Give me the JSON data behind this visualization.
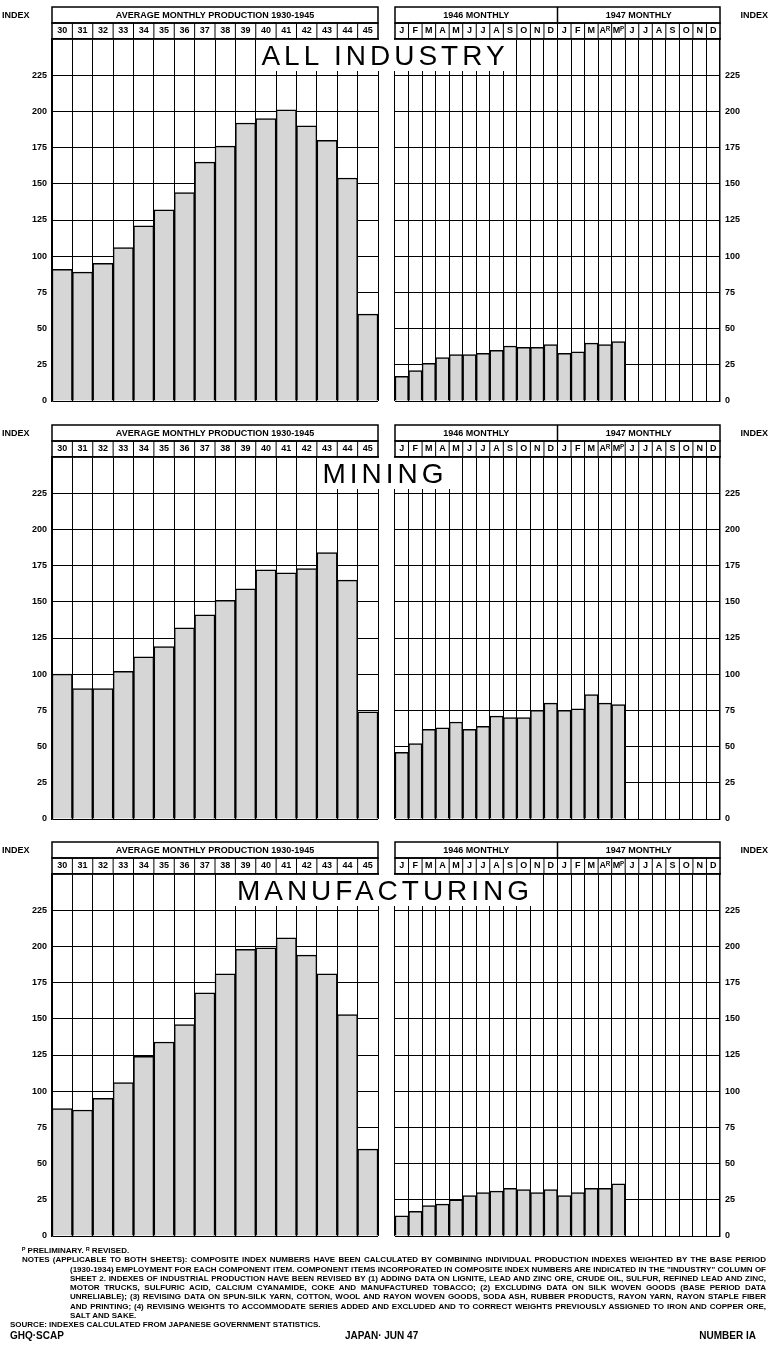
{
  "chart_data": [
    {
      "type": "bar",
      "title": "ALL INDUSTRY",
      "subtitle": "AVERAGE MONTHLY PRODUCTION 1930-1945",
      "ylabel": "INDEX",
      "categories": [
        "30",
        "31",
        "32",
        "33",
        "34",
        "35",
        "36",
        "37",
        "38",
        "39",
        "40",
        "41",
        "42",
        "43",
        "44",
        "45"
      ],
      "series": [
        {
          "color": "#d6d6d6",
          "values": [
            91,
            89,
            95,
            106,
            121,
            132,
            144,
            165,
            176,
            192,
            195,
            201,
            190,
            180,
            154,
            60
          ]
        }
      ],
      "ylim": [
        0,
        250
      ],
      "yticks": [
        0,
        25,
        50,
        75,
        100,
        125,
        150,
        175,
        200,
        225
      ],
      "grid": true
    },
    {
      "type": "bar",
      "annotations": [
        "1946 MONTHLY",
        "1947 MONTHLY"
      ],
      "y2label": "INDEX",
      "categories": [
        "J",
        "F",
        "M",
        "A",
        "M",
        "J",
        "J",
        "A",
        "S",
        "O",
        "N",
        "D",
        "J",
        "F",
        "M",
        "Aᴿ",
        "Mᴾ",
        "J",
        "J",
        "A",
        "S",
        "O",
        "N",
        "D"
      ],
      "series": [
        {
          "color": "#d6d6d6",
          "axis": "y2",
          "values": [
            17,
            21,
            26,
            30,
            32,
            32,
            33,
            35,
            38,
            37,
            37,
            39,
            33,
            34,
            40,
            39,
            41,
            null,
            null,
            null,
            null,
            null,
            null,
            null
          ]
        }
      ],
      "y2lim": [
        0,
        250
      ],
      "y2ticks": [
        0,
        25,
        50,
        75,
        100,
        125,
        150,
        175,
        200,
        225
      ],
      "grid": true
    },
    {
      "type": "bar",
      "title": "MINING",
      "subtitle": "AVERAGE MONTHLY PRODUCTION 1930-1945",
      "ylabel": "INDEX",
      "categories": [
        "30",
        "31",
        "32",
        "33",
        "34",
        "35",
        "36",
        "37",
        "38",
        "39",
        "40",
        "41",
        "42",
        "43",
        "44",
        "45"
      ],
      "series": [
        {
          "color": "#d6d6d6",
          "values": [
            100,
            90,
            90,
            102,
            112,
            119,
            132,
            141,
            151,
            159,
            172,
            170,
            173,
            184,
            165,
            74
          ]
        }
      ],
      "ylim": [
        0,
        250
      ],
      "yticks": [
        0,
        25,
        50,
        75,
        100,
        125,
        150,
        175,
        200,
        225
      ],
      "grid": true
    },
    {
      "type": "bar",
      "annotations": [
        "1946 MONTHLY",
        "1947 MONTHLY"
      ],
      "y2label": "INDEX",
      "categories": [
        "J",
        "F",
        "M",
        "A",
        "M",
        "J",
        "J",
        "A",
        "S",
        "O",
        "N",
        "D",
        "J",
        "F",
        "M",
        "Aᴿ",
        "Mᴾ",
        "J",
        "J",
        "A",
        "S",
        "O",
        "N",
        "D"
      ],
      "series": [
        {
          "color": "#d6d6d6",
          "axis": "y2",
          "values": [
            46,
            52,
            62,
            63,
            67,
            62,
            64,
            71,
            70,
            70,
            75,
            80,
            75,
            76,
            86,
            80,
            79,
            null,
            null,
            null,
            null,
            null,
            null,
            null
          ]
        }
      ],
      "y2lim": [
        0,
        250
      ],
      "y2ticks": [
        0,
        25,
        50,
        75,
        100,
        125,
        150,
        175,
        200,
        225
      ],
      "grid": true
    },
    {
      "type": "bar",
      "title": "MANUFACTURING",
      "subtitle": "AVERAGE MONTHLY PRODUCTION 1930-1945",
      "ylabel": "INDEX",
      "categories": [
        "30",
        "31",
        "32",
        "33",
        "34",
        "35",
        "36",
        "37",
        "38",
        "39",
        "40",
        "41",
        "42",
        "43",
        "44",
        "45"
      ],
      "series": [
        {
          "color": "#d6d6d6",
          "values": [
            88,
            87,
            95,
            106,
            124,
            134,
            146,
            168,
            181,
            198,
            199,
            206,
            194,
            181,
            153,
            60
          ]
        }
      ],
      "ylim": [
        0,
        250
      ],
      "yticks": [
        0,
        25,
        50,
        75,
        100,
        125,
        150,
        175,
        200,
        225
      ],
      "grid": true
    },
    {
      "type": "bar",
      "annotations": [
        "1946 MONTHLY",
        "1947 MONTHLY",
        "ᴾ PRELIMINARY.    ᴿ REVISED.",
        "NOTES (APPLICABLE TO BOTH SHEETS): COMPOSITE INDEX NUMBERS HAVE BEEN CALCULATED BY COMBINING INDIVIDUAL PRODUCTION INDEXES WEIGHTED BY THE BASE PERIOD (1930-1934) EMPLOYMENT FOR EACH COMPONENT ITEM. COMPONENT ITEMS INCORPORATED IN COMPOSITE INDEX NUMBERS ARE INDICATED IN THE \"INDUSTRY\" COLUMN OF SHEET 2. INDEXES OF INDUSTRIAL PRODUCTION HAVE BEEN REVISED BY (1) ADDING DATA ON LIGNITE, LEAD AND ZINC ORE, CRUDE OIL, SULFUR, REFINED LEAD AND ZINC, MOTOR TRUCKS, SULFURIC ACID, CALCIUM CYANAMIDE, COKE AND MANUFACTURED TOBACCO; (2) EXCLUDING DATA ON SILK WOVEN GOODS (BASE PERIOD DATA UNRELIABLE); (3) REVISING DATA ON SPUN-SILK YARN, COTTON, WOOL AND RAYON WOVEN GOODS, SODA ASH, RUBBER PRODUCTS, RAYON YARN, RAYON STAPLE FIBER AND PRINTING; (4) REVISING WEIGHTS TO ACCOMMODATE SERIES ADDED AND EXCLUDED AND TO CORRECT WEIGHTS PREVIOUSLY ASSIGNED TO IRON AND COPPER ORE, SALT AND SAKE.",
        "SOURCE: INDEXES CALCULATED FROM JAPANESE GOVERNMENT STATISTICS.",
        "GHQ·SCAP",
        "JAPAN· JUN 47",
        "NUMBER IA"
      ],
      "y2label": "INDEX",
      "categories": [
        "J",
        "F",
        "M",
        "A",
        "M",
        "J",
        "J",
        "A",
        "S",
        "O",
        "N",
        "D",
        "J",
        "F",
        "M",
        "Aᴿ",
        "Mᴾ",
        "J",
        "J",
        "A",
        "S",
        "O",
        "N",
        "D"
      ],
      "series": [
        {
          "color": "#d6d6d6",
          "axis": "y2",
          "values": [
            14,
            17,
            21,
            22,
            25,
            28,
            30,
            31,
            33,
            32,
            30,
            32,
            28,
            30,
            33,
            33,
            36,
            null,
            null,
            null,
            null,
            null,
            null,
            null
          ]
        }
      ],
      "y2lim": [
        0,
        250
      ],
      "y2ticks": [
        0,
        25,
        50,
        75,
        100,
        125,
        150,
        175,
        200,
        225
      ],
      "grid": true
    }
  ]
}
